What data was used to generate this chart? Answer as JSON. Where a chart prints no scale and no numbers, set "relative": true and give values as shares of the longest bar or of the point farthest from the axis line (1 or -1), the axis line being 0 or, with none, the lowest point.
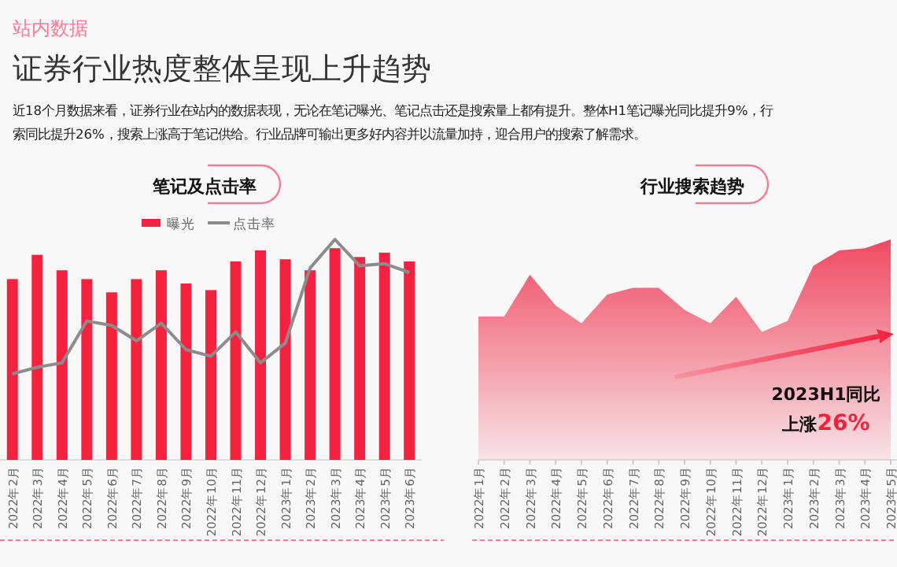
{
  "chart_data": [
    {
      "type": "other",
      "subtitle": "站内数据",
      "title": "证券行业热度整体呈现上升趋势",
      "annotations": [
        "近18个月数据来看，证券行业在站内的数据表现，无论在笔记曝光、笔记点击还是搜索量上都有提升。整体H1笔记曝光同比提升9%，行",
        "索同比提升26%，搜索上涨高于笔记供给。行业品牌可输出更多好内容并以流量加持，迎合用户的搜索了解需求。"
      ]
    },
    {
      "type": "bar",
      "title": "笔记及点击率",
      "relative": true,
      "legend": "top",
      "categories": [
        "2022年2月",
        "2022年3月",
        "2022年4月",
        "2022年5月",
        "2022年6月",
        "2022年7月",
        "2022年8月",
        "2022年9月",
        "2022年10月",
        "2022年11月",
        "2022年12月",
        "2023年1月",
        "2023年2月",
        "2023年3月",
        "2023年4月",
        "2023年5月",
        "2023年6月"
      ],
      "series": [
        {
          "name": "曝光",
          "type": "bar",
          "color": "#f5223f",
          "values": [
            0.82,
            0.93,
            0.86,
            0.82,
            0.76,
            0.82,
            0.86,
            0.8,
            0.77,
            0.9,
            0.95,
            0.91,
            0.86,
            0.96,
            0.92,
            0.94,
            0.9
          ]
        },
        {
          "name": "点击率",
          "type": "line",
          "color": "#8c8c8c",
          "values": [
            0.39,
            0.42,
            0.44,
            0.63,
            0.61,
            0.54,
            0.62,
            0.5,
            0.47,
            0.58,
            0.44,
            0.53,
            0.87,
            1.0,
            0.88,
            0.89,
            0.85
          ]
        }
      ]
    },
    {
      "type": "area",
      "title": "行业搜索趋势",
      "relative": true,
      "color": "#f04a62",
      "categories": [
        "2022年1月",
        "2022年2月",
        "2022年3月",
        "2022年4月",
        "2022年5月",
        "2022年6月",
        "2022年7月",
        "2022年8月",
        "2022年9月",
        "2022年10月",
        "2022年11月",
        "2022年12月",
        "2023年1月",
        "2023年2月",
        "2023年3月",
        "2023年4月",
        "2023年5月"
      ],
      "values": [
        0.65,
        0.65,
        0.84,
        0.7,
        0.62,
        0.75,
        0.78,
        0.78,
        0.68,
        0.62,
        0.74,
        0.58,
        0.63,
        0.88,
        0.95,
        0.96,
        1.0
      ],
      "annotations": [
        "2023H1同比",
        "上涨26%"
      ]
    }
  ]
}
